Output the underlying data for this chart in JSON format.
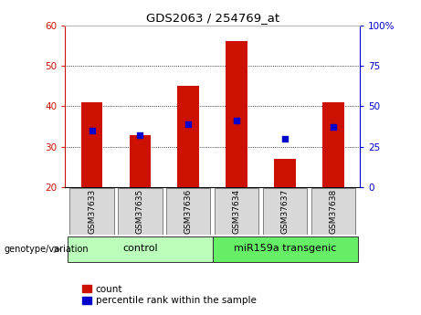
{
  "title": "GDS2063 / 254769_at",
  "samples": [
    "GSM37633",
    "GSM37635",
    "GSM37636",
    "GSM37634",
    "GSM37637",
    "GSM37638"
  ],
  "bar_tops": [
    41,
    33,
    45,
    56,
    27,
    41
  ],
  "bar_base": 20,
  "blue_values": [
    34,
    33,
    35.5,
    36.5,
    32,
    35
  ],
  "bar_color": "#cc1100",
  "blue_color": "#0000cc",
  "ylim_left": [
    20,
    60
  ],
  "ylim_right": [
    0,
    100
  ],
  "yticks_left": [
    20,
    30,
    40,
    50,
    60
  ],
  "yticks_right": [
    0,
    25,
    50,
    75,
    100
  ],
  "groups": [
    {
      "label": "control",
      "indices": [
        0,
        1,
        2
      ],
      "color": "#bbffbb"
    },
    {
      "label": "miR159a transgenic",
      "indices": [
        3,
        4,
        5
      ],
      "color": "#66ee66"
    }
  ],
  "legend_count_label": "count",
  "legend_pct_label": "percentile rank within the sample",
  "genotype_label": "genotype/variation",
  "tick_label_bg": "#d8d8d8"
}
